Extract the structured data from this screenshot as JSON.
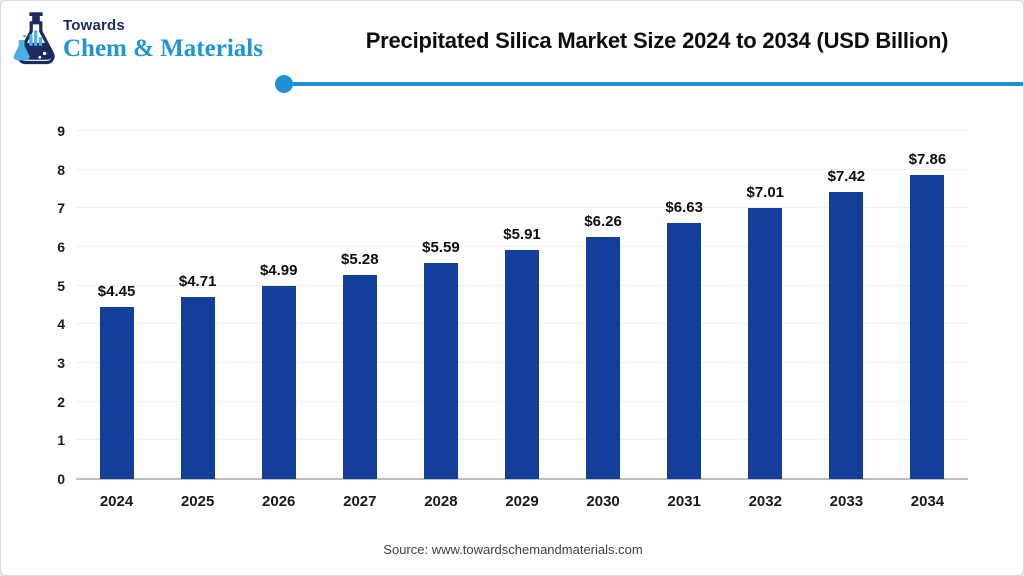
{
  "header": {
    "logo": {
      "top": "Towards",
      "bottom": "Chem & Materials",
      "icon": "flask-icon"
    },
    "title": "Precipitated Silica Market Size 2024 to 2034 (USD Billion)"
  },
  "chart_data": {
    "type": "bar",
    "title": "Precipitated Silica Market Size 2024 to 2034 (USD Billion)",
    "categories": [
      "2024",
      "2025",
      "2026",
      "2027",
      "2028",
      "2029",
      "2030",
      "2031",
      "2032",
      "2033",
      "2034"
    ],
    "values": [
      4.45,
      4.71,
      4.99,
      5.28,
      5.59,
      5.91,
      6.26,
      6.63,
      7.01,
      7.42,
      7.86
    ],
    "value_labels": [
      "$4.45",
      "$4.71",
      "$4.99",
      "$5.28",
      "$5.59",
      "$5.91",
      "$6.26",
      "$6.63",
      "$7.01",
      "$7.42",
      "$7.86"
    ],
    "xlabel": "",
    "ylabel": "",
    "ylim": [
      0,
      9
    ],
    "ytick_step": 1,
    "grid": true,
    "legend": "none",
    "bar_color": "#133f9b"
  },
  "footer": {
    "source": "Source: www.towardschemandmaterials.com"
  },
  "colors": {
    "accent_blue": "#1e90d6",
    "logo_navy": "#1c2b5f",
    "logo_blue": "#1e96d4",
    "bar_blue": "#133f9b",
    "axis_line": "#bdbdbd",
    "gridline": "#f0f0f0"
  }
}
